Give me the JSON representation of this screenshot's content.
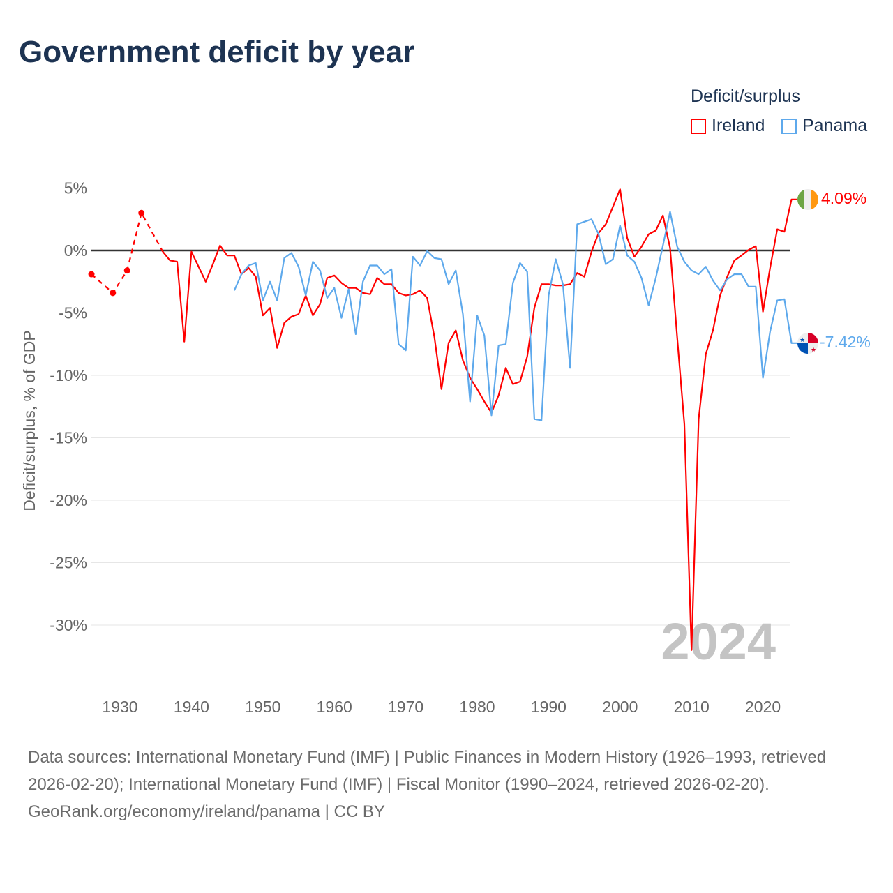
{
  "title": "Government deficit by year",
  "legend": {
    "title": "Deficit/surplus",
    "items": [
      {
        "name": "Ireland",
        "color": "#ff0000"
      },
      {
        "name": "Panama",
        "color": "#5ea9ec"
      }
    ]
  },
  "footer": {
    "sources": "Data sources: International Monetary Fund (IMF) | Public Finances in Modern History (1926–1993, retrieved 2026-02-20); International Monetary Fund (IMF) | Fiscal Monitor (1990–2024, retrieved 2026-02-20).",
    "credit": "GeoRank.org/economy/ireland/panama | CC BY"
  },
  "chart_data": {
    "type": "line",
    "title": "Government deficit by year",
    "ylabel": "Deficit/surplus, % of GDP",
    "xlabel": "",
    "ylim": [
      -32.5,
      5
    ],
    "xlim": [
      1926,
      2024
    ],
    "yticks": [
      5,
      0,
      -5,
      -10,
      -15,
      -20,
      -25,
      -30
    ],
    "ytick_labels": [
      "5%",
      "0%",
      "-5%",
      "-10%",
      "-15%",
      "-20%",
      "-25%",
      "-30%"
    ],
    "xticks": [
      1930,
      1940,
      1950,
      1960,
      1970,
      1980,
      1990,
      2000,
      2010,
      2020
    ],
    "xtick_labels": [
      "1930",
      "1940",
      "1950",
      "1960",
      "1970",
      "1980",
      "1990",
      "2000",
      "2010",
      "2020"
    ],
    "year_label": "2024",
    "series": [
      {
        "name": "Ireland",
        "color": "#ff0000",
        "end_label": "4.09%",
        "sparse_points": {
          "x": [
            1926,
            1929,
            1931,
            1933,
            1936
          ],
          "y": [
            -1.9,
            -3.4,
            -1.6,
            3.0,
            -0.1
          ]
        },
        "x": [
          1936,
          1937,
          1938,
          1939,
          1940,
          1941,
          1942,
          1943,
          1944,
          1945,
          1946,
          1947,
          1948,
          1949,
          1950,
          1951,
          1952,
          1953,
          1954,
          1955,
          1956,
          1957,
          1958,
          1959,
          1960,
          1961,
          1962,
          1963,
          1964,
          1965,
          1966,
          1967,
          1968,
          1969,
          1970,
          1971,
          1972,
          1973,
          1974,
          1975,
          1976,
          1977,
          1978,
          1979,
          1980,
          1981,
          1982,
          1983,
          1984,
          1985,
          1986,
          1987,
          1988,
          1989,
          1990,
          1991,
          1992,
          1993,
          1994,
          1995,
          1996,
          1997,
          1998,
          1999,
          2000,
          2001,
          2002,
          2003,
          2004,
          2005,
          2006,
          2007,
          2008,
          2009,
          2010,
          2011,
          2012,
          2013,
          2014,
          2015,
          2016,
          2017,
          2018,
          2019,
          2020,
          2021,
          2022,
          2023,
          2024
        ],
        "y": [
          -0.1,
          -0.8,
          -0.9,
          -7.3,
          -0.1,
          -1.3,
          -2.5,
          -1.1,
          0.4,
          -0.4,
          -0.4,
          -1.9,
          -1.4,
          -2.1,
          -5.2,
          -4.6,
          -7.8,
          -5.8,
          -5.3,
          -5.1,
          -3.6,
          -5.2,
          -4.3,
          -2.2,
          -2.0,
          -2.6,
          -3.0,
          -3.0,
          -3.4,
          -3.5,
          -2.2,
          -2.7,
          -2.7,
          -3.4,
          -3.6,
          -3.5,
          -3.2,
          -3.8,
          -6.9,
          -11.1,
          -7.4,
          -6.4,
          -8.8,
          -10.2,
          -11.1,
          -12.1,
          -13.0,
          -11.6,
          -9.4,
          -10.7,
          -10.5,
          -8.5,
          -4.6,
          -2.7,
          -2.7,
          -2.8,
          -2.8,
          -2.7,
          -1.8,
          -2.1,
          -0.1,
          1.4,
          2.1,
          3.5,
          4.9,
          1.0,
          -0.5,
          0.3,
          1.3,
          1.6,
          2.8,
          0.2,
          -7.0,
          -13.9,
          -32.0,
          -13.5,
          -8.3,
          -6.4,
          -3.6,
          -2.1,
          -0.8,
          -0.4,
          0.05,
          0.35,
          -4.9,
          -1.4,
          1.7,
          1.5,
          4.09
        ]
      },
      {
        "name": "Panama",
        "color": "#5ea9ec",
        "end_label": "-7.42%",
        "x": [
          1946,
          1947,
          1948,
          1949,
          1950,
          1951,
          1952,
          1953,
          1954,
          1955,
          1956,
          1957,
          1958,
          1959,
          1960,
          1961,
          1962,
          1963,
          1964,
          1965,
          1966,
          1967,
          1968,
          1969,
          1970,
          1971,
          1972,
          1973,
          1974,
          1975,
          1976,
          1977,
          1978,
          1979,
          1980,
          1981,
          1982,
          1983,
          1984,
          1985,
          1986,
          1987,
          1988,
          1989,
          1990,
          1991,
          1992,
          1993,
          1994,
          1995,
          1996,
          1997,
          1998,
          1999,
          2000,
          2001,
          2002,
          2003,
          2004,
          2005,
          2006,
          2007,
          2008,
          2009,
          2010,
          2011,
          2012,
          2013,
          2014,
          2015,
          2016,
          2017,
          2018,
          2019,
          2020,
          2021,
          2022,
          2023,
          2024
        ],
        "y": [
          -3.2,
          -1.9,
          -1.2,
          -1.0,
          -4.0,
          -2.5,
          -4.0,
          -0.6,
          -0.2,
          -1.3,
          -3.6,
          -0.9,
          -1.6,
          -3.8,
          -3.0,
          -5.4,
          -3.1,
          -6.7,
          -2.5,
          -1.2,
          -1.2,
          -1.9,
          -1.5,
          -7.5,
          -8.0,
          -0.5,
          -1.2,
          -0.05,
          -0.6,
          -0.7,
          -2.7,
          -1.6,
          -5.1,
          -12.1,
          -5.2,
          -6.8,
          -13.2,
          -7.6,
          -7.5,
          -2.6,
          -1.0,
          -1.7,
          -13.5,
          -13.6,
          -3.6,
          -0.7,
          -2.7,
          -9.4,
          2.1,
          2.3,
          2.5,
          1.3,
          -1.1,
          -0.7,
          2.0,
          -0.4,
          -0.9,
          -2.2,
          -4.4,
          -2.2,
          0.4,
          3.1,
          0.3,
          -0.9,
          -1.6,
          -1.9,
          -1.3,
          -2.4,
          -3.2,
          -2.3,
          -1.9,
          -1.9,
          -2.9,
          -2.9,
          -10.2,
          -6.5,
          -4.0,
          -3.9,
          -7.42
        ]
      }
    ]
  }
}
